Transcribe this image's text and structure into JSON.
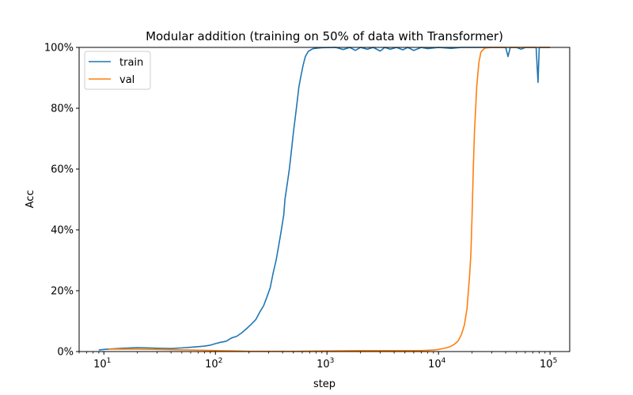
{
  "chart_data": {
    "type": "line",
    "title": "Modular addition (training on 50% of data with Transformer)",
    "xlabel": "step",
    "ylabel": "Acc",
    "x_scale": "log",
    "xlim": [
      6,
      150000
    ],
    "ylim": [
      0,
      100
    ],
    "x_ticks": [
      {
        "value": 10,
        "base": "10",
        "exp": "1"
      },
      {
        "value": 100,
        "base": "10",
        "exp": "2"
      },
      {
        "value": 1000,
        "base": "10",
        "exp": "3"
      },
      {
        "value": 10000,
        "base": "10",
        "exp": "4"
      },
      {
        "value": 100000,
        "base": "10",
        "exp": "5"
      }
    ],
    "y_ticks": [
      {
        "value": 0,
        "label": "0%"
      },
      {
        "value": 20,
        "label": "20%"
      },
      {
        "value": 40,
        "label": "40%"
      },
      {
        "value": 60,
        "label": "60%"
      },
      {
        "value": 80,
        "label": "80%"
      },
      {
        "value": 100,
        "label": "100%"
      }
    ],
    "legend_position": "top-left",
    "grid": false,
    "series": [
      {
        "name": "train",
        "color": "#1f77b4",
        "points": [
          [
            9,
            0.5
          ],
          [
            10,
            0.7
          ],
          [
            12,
            0.9
          ],
          [
            15,
            1.1
          ],
          [
            20,
            1.3
          ],
          [
            25,
            1.2
          ],
          [
            30,
            1.1
          ],
          [
            40,
            1.0
          ],
          [
            50,
            1.2
          ],
          [
            60,
            1.4
          ],
          [
            70,
            1.6
          ],
          [
            80,
            1.8
          ],
          [
            90,
            2.1
          ],
          [
            100,
            2.6
          ],
          [
            110,
            3.0
          ],
          [
            125,
            3.4
          ],
          [
            140,
            4.5
          ],
          [
            155,
            5.0
          ],
          [
            170,
            6.0
          ],
          [
            190,
            7.5
          ],
          [
            210,
            9.0
          ],
          [
            230,
            10.5
          ],
          [
            250,
            13.0
          ],
          [
            270,
            15.0
          ],
          [
            290,
            18.0
          ],
          [
            310,
            21.0
          ],
          [
            330,
            26.0
          ],
          [
            350,
            30.0
          ],
          [
            370,
            35.0
          ],
          [
            390,
            40.0
          ],
          [
            410,
            45.0
          ],
          [
            420,
            50.0
          ],
          [
            440,
            55.0
          ],
          [
            460,
            60.0
          ],
          [
            480,
            66.0
          ],
          [
            500,
            72.0
          ],
          [
            520,
            77.0
          ],
          [
            540,
            82.0
          ],
          [
            560,
            87.0
          ],
          [
            580,
            90.0
          ],
          [
            610,
            94.0
          ],
          [
            640,
            97.0
          ],
          [
            680,
            98.7
          ],
          [
            750,
            99.6
          ],
          [
            900,
            99.9
          ],
          [
            1200,
            100
          ],
          [
            1400,
            99.3
          ],
          [
            1600,
            100
          ],
          [
            1800,
            99.0
          ],
          [
            2000,
            100
          ],
          [
            2300,
            99.4
          ],
          [
            2600,
            100
          ],
          [
            3000,
            98.8
          ],
          [
            3300,
            100
          ],
          [
            3700,
            99.4
          ],
          [
            4200,
            100
          ],
          [
            4800,
            99.2
          ],
          [
            5300,
            100
          ],
          [
            6000,
            99.0
          ],
          [
            7000,
            100
          ],
          [
            8000,
            99.6
          ],
          [
            10000,
            100
          ],
          [
            13000,
            99.7
          ],
          [
            16000,
            100
          ],
          [
            20000,
            100
          ],
          [
            30000,
            100
          ],
          [
            40000,
            100
          ],
          [
            42000,
            97.0
          ],
          [
            44000,
            100
          ],
          [
            50000,
            100
          ],
          [
            55000,
            99.4
          ],
          [
            60000,
            100
          ],
          [
            75000,
            100
          ],
          [
            78000,
            88.5
          ],
          [
            80000,
            100
          ],
          [
            90000,
            100
          ],
          [
            100000,
            100
          ]
        ]
      },
      {
        "name": "val",
        "color": "#ff7f0e",
        "points": [
          [
            11,
            0.8
          ],
          [
            15,
            0.8
          ],
          [
            20,
            0.8
          ],
          [
            30,
            0.7
          ],
          [
            40,
            0.6
          ],
          [
            60,
            0.5
          ],
          [
            80,
            0.4
          ],
          [
            100,
            0.3
          ],
          [
            150,
            0.2
          ],
          [
            200,
            0.1
          ],
          [
            300,
            0.1
          ],
          [
            500,
            0.1
          ],
          [
            1000,
            0.2
          ],
          [
            2000,
            0.3
          ],
          [
            3000,
            0.3
          ],
          [
            5000,
            0.3
          ],
          [
            7000,
            0.3
          ],
          [
            9000,
            0.5
          ],
          [
            10000,
            0.7
          ],
          [
            11000,
            1.0
          ],
          [
            12000,
            1.3
          ],
          [
            13000,
            1.8
          ],
          [
            14000,
            2.5
          ],
          [
            15000,
            3.5
          ],
          [
            16000,
            5.5
          ],
          [
            17000,
            8.5
          ],
          [
            18000,
            14.0
          ],
          [
            19000,
            25.0
          ],
          [
            19500,
            32.0
          ],
          [
            20000,
            45.0
          ],
          [
            20500,
            60.0
          ],
          [
            21000,
            72.0
          ],
          [
            22000,
            87.0
          ],
          [
            23000,
            95.0
          ],
          [
            24000,
            98.5
          ],
          [
            26000,
            99.8
          ],
          [
            30000,
            100
          ],
          [
            40000,
            100
          ],
          [
            60000,
            100
          ],
          [
            80000,
            100
          ],
          [
            100000,
            100
          ]
        ]
      }
    ]
  }
}
